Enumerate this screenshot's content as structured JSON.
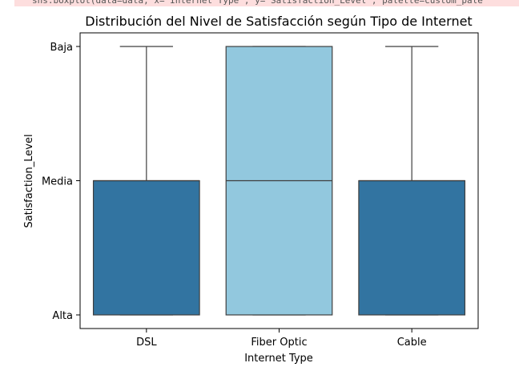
{
  "code_strip": "sns.boxplot(data=data, x='Internet Type', y='Satisfaction_Level', palette=custom_pale",
  "chart_data": {
    "type": "box",
    "title": "Distribución del Nivel de Satisfacción según Tipo de Internet",
    "xlabel": "Internet Type",
    "ylabel": "Satisfaction_Level",
    "y_categories": [
      "Alta",
      "Media",
      "Baja"
    ],
    "categories": [
      "DSL",
      "Fiber Optic",
      "Cable"
    ],
    "boxes": [
      {
        "category": "DSL",
        "whisker_low": "Alta",
        "q1": "Alta",
        "median": "Media",
        "q3": "Media",
        "whisker_high": "Baja",
        "color": "#3274a1"
      },
      {
        "category": "Fiber Optic",
        "whisker_low": "Alta",
        "q1": "Alta",
        "median": "Media",
        "q3": "Baja",
        "whisker_high": "Baja",
        "color": "#92c8de"
      },
      {
        "category": "Cable",
        "whisker_low": "Alta",
        "q1": "Alta",
        "median": "Media",
        "q3": "Media",
        "whisker_high": "Baja",
        "color": "#3274a1"
      }
    ],
    "grid": false
  }
}
